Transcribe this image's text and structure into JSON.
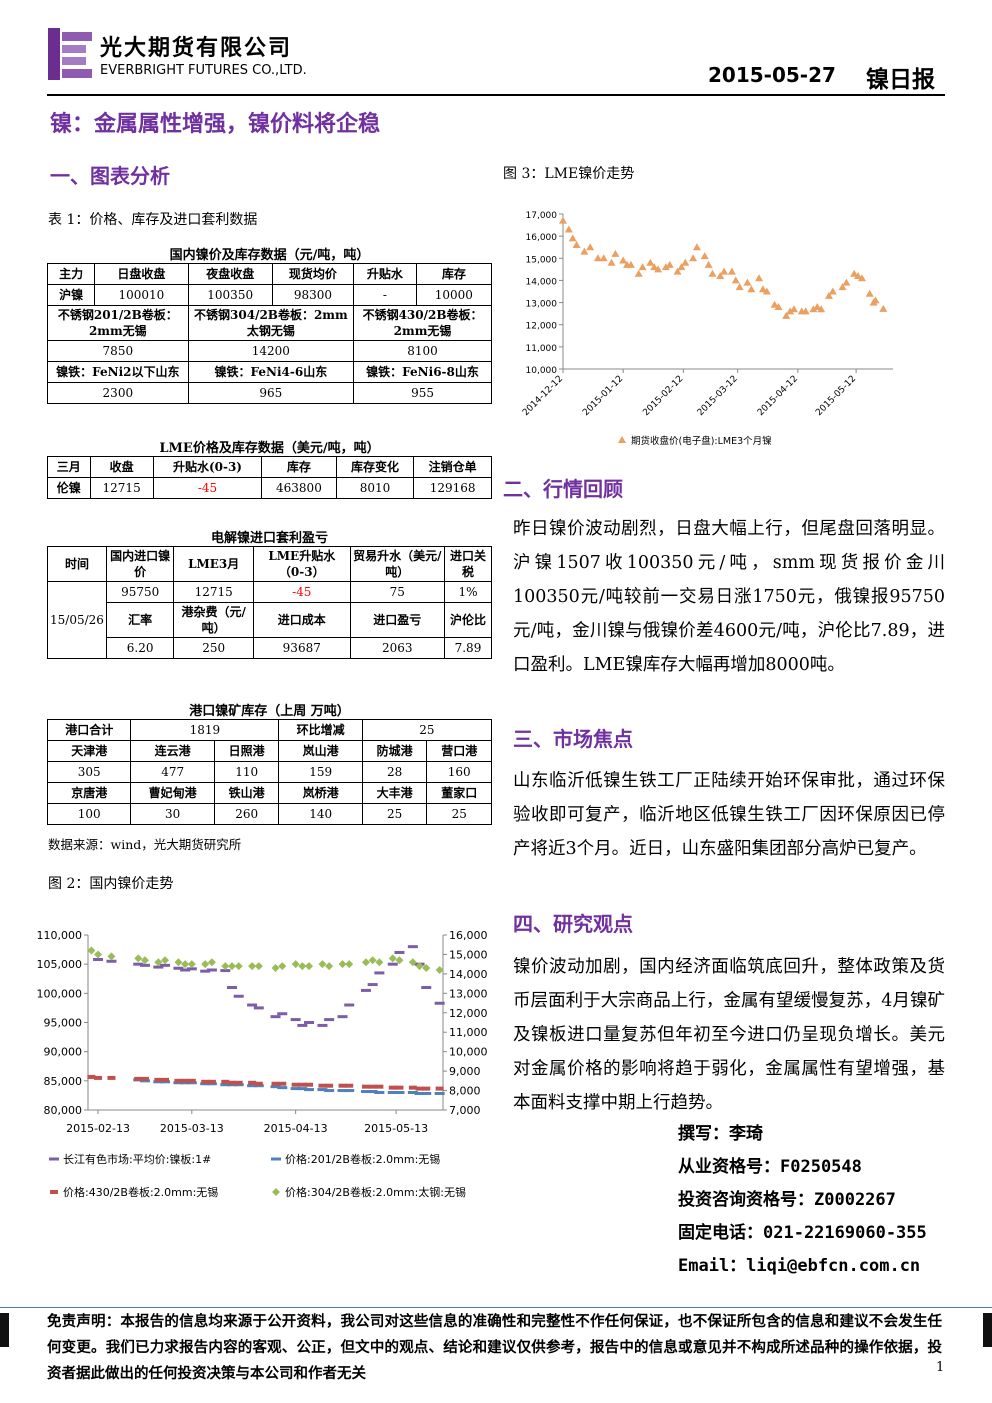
{
  "header": {
    "company_cn": "光大期货有限公司",
    "company_en": "EVERBRIGHT FUTURES CO.,LTD.",
    "date": "2015-05-27",
    "report": "镍日报"
  },
  "title": "镍：金属属性增强，镍价料将企稳",
  "section1": {
    "heading": "一、图表分析",
    "table_caption": "表 1：价格、库存及进口套利数据",
    "tables": [
      {
        "title": "国内镍价及库存数据（元/吨，吨）",
        "rows": [
          [
            "主力",
            "日盘收盘",
            "夜盘收盘",
            "现货均价",
            "升贴水",
            "库存"
          ],
          [
            "沪镍",
            "100010",
            "100350",
            "98300",
            "-",
            "10000"
          ],
          [
            "不锈钢201/2B卷板：2mm无锡",
            "不锈钢304/2B卷板：2mm太钢无锡",
            "不锈钢430/2B卷板：2mm无锡"
          ],
          [
            "7850",
            "14200",
            "8100"
          ],
          [
            "镍铁：FeNi2以下山东",
            "镍铁：FeNi4-6山东",
            "镍铁：FeNi6-8山东"
          ],
          [
            "2300",
            "965",
            "955"
          ]
        ]
      },
      {
        "title": "LME价格及库存数据（美元/吨，吨）",
        "rows": [
          [
            "三月",
            "收盘",
            "升贴水(0-3)",
            "库存",
            "库存变化",
            "注销仓单"
          ],
          [
            "伦镍",
            "12715",
            "-45",
            "463800",
            "8010",
            "129168"
          ]
        ]
      },
      {
        "title": "电解镍进口套利盈亏",
        "rows": [
          [
            "时间",
            "国内进口镍价",
            "LME3月",
            "LME升贴水（0-3）",
            "贸易升水（美元/吨）",
            "进口关税"
          ],
          [
            "15/05/26",
            "95750",
            "12715",
            "-45",
            "75",
            "1%"
          ],
          [
            "汇率",
            "港杂费（元/吨）",
            "进口成本",
            "进口盈亏",
            "沪伦比"
          ],
          [
            "6.20",
            "250",
            "93687",
            "2063",
            "7.89"
          ]
        ]
      },
      {
        "title": "港口镍矿库存（上周 万吨）",
        "rows": [
          [
            "港口合计",
            "1819",
            "环比增减",
            "25"
          ],
          [
            "天津港",
            "连云港",
            "日照港",
            "岚山港",
            "防城港",
            "营口港"
          ],
          [
            "305",
            "477",
            "110",
            "159",
            "28",
            "160"
          ],
          [
            "京唐港",
            "曹妃甸港",
            "铁山港",
            "岚桥港",
            "大丰港",
            "董家口"
          ],
          [
            "100",
            "30",
            "260",
            "140",
            "25",
            "25"
          ]
        ]
      }
    ],
    "source": "数据来源：wind，光大期货研究所",
    "figure2": {
      "caption": "图 2：国内镍价走势",
      "type": "scatter",
      "x": [
        "2015-02-11",
        "2015-02-13",
        "2015-02-17",
        "2015-02-25",
        "2015-02-27",
        "2015-03-03",
        "2015-03-05",
        "2015-03-09",
        "2015-03-11",
        "2015-03-13",
        "2015-03-17",
        "2015-03-19",
        "2015-03-23",
        "2015-03-25",
        "2015-03-27",
        "2015-03-31",
        "2015-04-02",
        "2015-04-07",
        "2015-04-09",
        "2015-04-13",
        "2015-04-15",
        "2015-04-17",
        "2015-04-21",
        "2015-04-23",
        "2015-04-27",
        "2015-04-29",
        "2015-05-04",
        "2015-05-06",
        "2015-05-08",
        "2015-05-12",
        "2015-05-14",
        "2015-05-18",
        "2015-05-20",
        "2015-05-22",
        "2015-05-26"
      ],
      "xlim": [
        "2015-02-10",
        "2015-05-27"
      ],
      "xticks": [
        "2015-02-13",
        "2015-03-13",
        "2015-04-13",
        "2015-05-13"
      ],
      "ylim": [
        80000,
        110000
      ],
      "yticks": [
        {
          "value": 80000,
          "label": "80,000"
        },
        {
          "value": 85000,
          "label": "85,000"
        },
        {
          "value": 90000,
          "label": "90,000"
        },
        {
          "value": 95000,
          "label": "95,000"
        },
        {
          "value": 100000,
          "label": "100,000"
        },
        {
          "value": 105000,
          "label": "105,000"
        },
        {
          "value": 110000,
          "label": "110,000"
        }
      ],
      "y2lim": [
        7000,
        16000
      ],
      "y2ticks": [
        {
          "value": 7000,
          "label": "7,000"
        },
        {
          "value": 8000,
          "label": "8,000"
        },
        {
          "value": 9000,
          "label": "9,000"
        },
        {
          "value": 10000,
          "label": "10,000"
        },
        {
          "value": 11000,
          "label": "11,000"
        },
        {
          "value": 12000,
          "label": "12,000"
        },
        {
          "value": 13000,
          "label": "13,000"
        },
        {
          "value": 14000,
          "label": "14,000"
        },
        {
          "value": 15000,
          "label": "15,000"
        },
        {
          "value": 16000,
          "label": "16,000"
        }
      ],
      "series": [
        {
          "name": "长江有色市场:平均价:镍板:1#",
          "color": "#7b5ea7",
          "marker": "dash",
          "values": [
            null,
            105800,
            105500,
            105000,
            104800,
            104500,
            104800,
            104300,
            104000,
            104200,
            103800,
            104000,
            103900,
            101000,
            99500,
            98000,
            97500,
            96000,
            96500,
            95500,
            94500,
            95000,
            94500,
            95500,
            96000,
            98000,
            100500,
            101500,
            103500,
            105000,
            107000,
            108000,
            105000,
            101000,
            98300
          ]
        },
        {
          "name": "价格:201/2B卷板:2.0mm:无锡",
          "color": "#4f81bd",
          "marker": "dash",
          "axis": "y2",
          "values": [
            null,
            null,
            null,
            8550,
            8500,
            8450,
            8450,
            8400,
            8400,
            8400,
            8350,
            8350,
            8300,
            8300,
            8300,
            8250,
            8250,
            8200,
            8150,
            8100,
            8100,
            8050,
            8050,
            8000,
            8000,
            8000,
            7950,
            7950,
            7900,
            7900,
            7900,
            7900,
            7850,
            7850,
            7850
          ]
        },
        {
          "name": "价格:430/2B卷板:2.0mm:无锡",
          "color": "#c0504d",
          "marker": "square",
          "axis": "y2",
          "values": [
            8700,
            8650,
            8650,
            8600,
            8600,
            8550,
            8550,
            8500,
            8500,
            8500,
            8450,
            8450,
            8450,
            8400,
            8400,
            8400,
            8350,
            8350,
            8350,
            8300,
            8300,
            8300,
            8250,
            8250,
            8250,
            8250,
            8200,
            8200,
            8200,
            8150,
            8150,
            8150,
            8100,
            8100,
            8100
          ]
        },
        {
          "name": "价格:304/2B卷板:2.0mm:太钢:无锡",
          "color": "#9bbb59",
          "marker": "diamond",
          "axis": "y2",
          "values": [
            15200,
            15000,
            14900,
            14800,
            14700,
            14600,
            14700,
            14600,
            14500,
            14500,
            14500,
            14600,
            14400,
            14400,
            14400,
            14400,
            14400,
            14300,
            14400,
            14500,
            14400,
            14400,
            14500,
            14400,
            14500,
            14500,
            14600,
            14700,
            14600,
            14800,
            14700,
            14600,
            14400,
            14300,
            14200
          ]
        }
      ]
    }
  },
  "figure3": {
    "caption": "图 3：LME镍价走势",
    "type": "scatter",
    "x": [
      "2014-12-12",
      "2014-12-15",
      "2014-12-17",
      "2014-12-19",
      "2014-12-23",
      "2014-12-26",
      "2014-12-30",
      "2015-01-02",
      "2015-01-06",
      "2015-01-08",
      "2015-01-12",
      "2015-01-14",
      "2015-01-16",
      "2015-01-20",
      "2015-01-22",
      "2015-01-26",
      "2015-01-28",
      "2015-01-30",
      "2015-02-03",
      "2015-02-05",
      "2015-02-09",
      "2015-02-11",
      "2015-02-13",
      "2015-02-17",
      "2015-02-19",
      "2015-02-23",
      "2015-02-25",
      "2015-02-27",
      "2015-03-03",
      "2015-03-05",
      "2015-03-09",
      "2015-03-11",
      "2015-03-13",
      "2015-03-17",
      "2015-03-19",
      "2015-03-23",
      "2015-03-25",
      "2015-03-27",
      "2015-03-31",
      "2015-04-02",
      "2015-04-06",
      "2015-04-08",
      "2015-04-10",
      "2015-04-14",
      "2015-04-16",
      "2015-04-20",
      "2015-04-22",
      "2015-04-24",
      "2015-04-28",
      "2015-04-30",
      "2015-05-05",
      "2015-05-07",
      "2015-05-11",
      "2015-05-13",
      "2015-05-15",
      "2015-05-19",
      "2015-05-21",
      "2015-05-22",
      "2015-05-26"
    ],
    "xlim": [
      "2014-12-12",
      "2015-05-31"
    ],
    "xticks": [
      "2014-12-12",
      "2015-01-12",
      "2015-02-12",
      "2015-03-12",
      "2015-04-12",
      "2015-05-12"
    ],
    "ylim": [
      10000,
      17000
    ],
    "yticks": [
      {
        "value": 10000,
        "label": "10,000"
      },
      {
        "value": 11000,
        "label": "11,000"
      },
      {
        "value": 12000,
        "label": "12,000"
      },
      {
        "value": 13000,
        "label": "13,000"
      },
      {
        "value": 14000,
        "label": "14,000"
      },
      {
        "value": 15000,
        "label": "15,000"
      },
      {
        "value": 16000,
        "label": "16,000"
      },
      {
        "value": 17000,
        "label": "17,000"
      }
    ],
    "series": [
      {
        "name": "期货收盘价(电子盘):LME3个月镍",
        "color": "#e9a060",
        "marker": "triangle",
        "values": [
          16700,
          16300,
          15900,
          15600,
          15300,
          15500,
          15000,
          15000,
          14800,
          15200,
          14900,
          14700,
          14700,
          14300,
          14600,
          14800,
          14600,
          14500,
          14600,
          14700,
          14400,
          14600,
          14800,
          15000,
          15500,
          15100,
          14700,
          14300,
          14200,
          14400,
          14400,
          14000,
          13700,
          13900,
          13600,
          14100,
          13600,
          13500,
          12900,
          12800,
          12400,
          12600,
          12700,
          12600,
          12600,
          12700,
          12800,
          12700,
          13300,
          13500,
          13700,
          13900,
          14300,
          14200,
          14100,
          13400,
          13000,
          13100,
          12715
        ]
      }
    ]
  },
  "section2": {
    "heading": "二、行情回顾",
    "text": "昨日镍价波动剧烈，日盘大幅上行，但尾盘回落明显。沪镍1507收100350元/吨，smm现货报价金川100350元/吨较前一交易日涨1750元，俄镍报95750元/吨，金川镍与俄镍价差4600元/吨，沪伦比7.89，进口盈利。LME镍库存大幅再增加8000吨。"
  },
  "section3": {
    "heading": "三、市场焦点",
    "text": "山东临沂低镍生铁工厂正陆续开始环保审批，通过环保验收即可复产，临沂地区低镍生铁工厂因环保原因已停产将近3个月。近日，山东盛阳集团部分高炉已复产。"
  },
  "section4": {
    "heading": "四、研究观点",
    "text": "镍价波动加剧，国内经济面临筑底回升，整体政策及货币层面利于大宗商品上行，金属有望缓慢复苏，4月镍矿及镍板进口量复苏但年初至今进口仍呈现负增长。美元对金属价格的影响将趋于弱化，金属属性有望增强，基本面料支撑中期上行趋势。"
  },
  "author": [
    "撰写：李琦",
    "从业资格号：F0250548",
    "投资咨询资格号：Z0002267",
    "固定电话：021-22169060-355",
    "Email：liqi@ebfcn.com.cn"
  ],
  "disclaimer": "免责声明：本报告的信息均来源于公开资料，我公司对这些信息的准确性和完整性不作任何保证，也不保证所包含的信息和建议不会发生任何变更。我们已力求报告内容的客观、公正，但文中的观点、结论和建议仅供参考，报告中的信息或意见并不构成所述品种的操作依据，投资者据此做出的任何投资决策与本公司和作者无关",
  "page": "1"
}
